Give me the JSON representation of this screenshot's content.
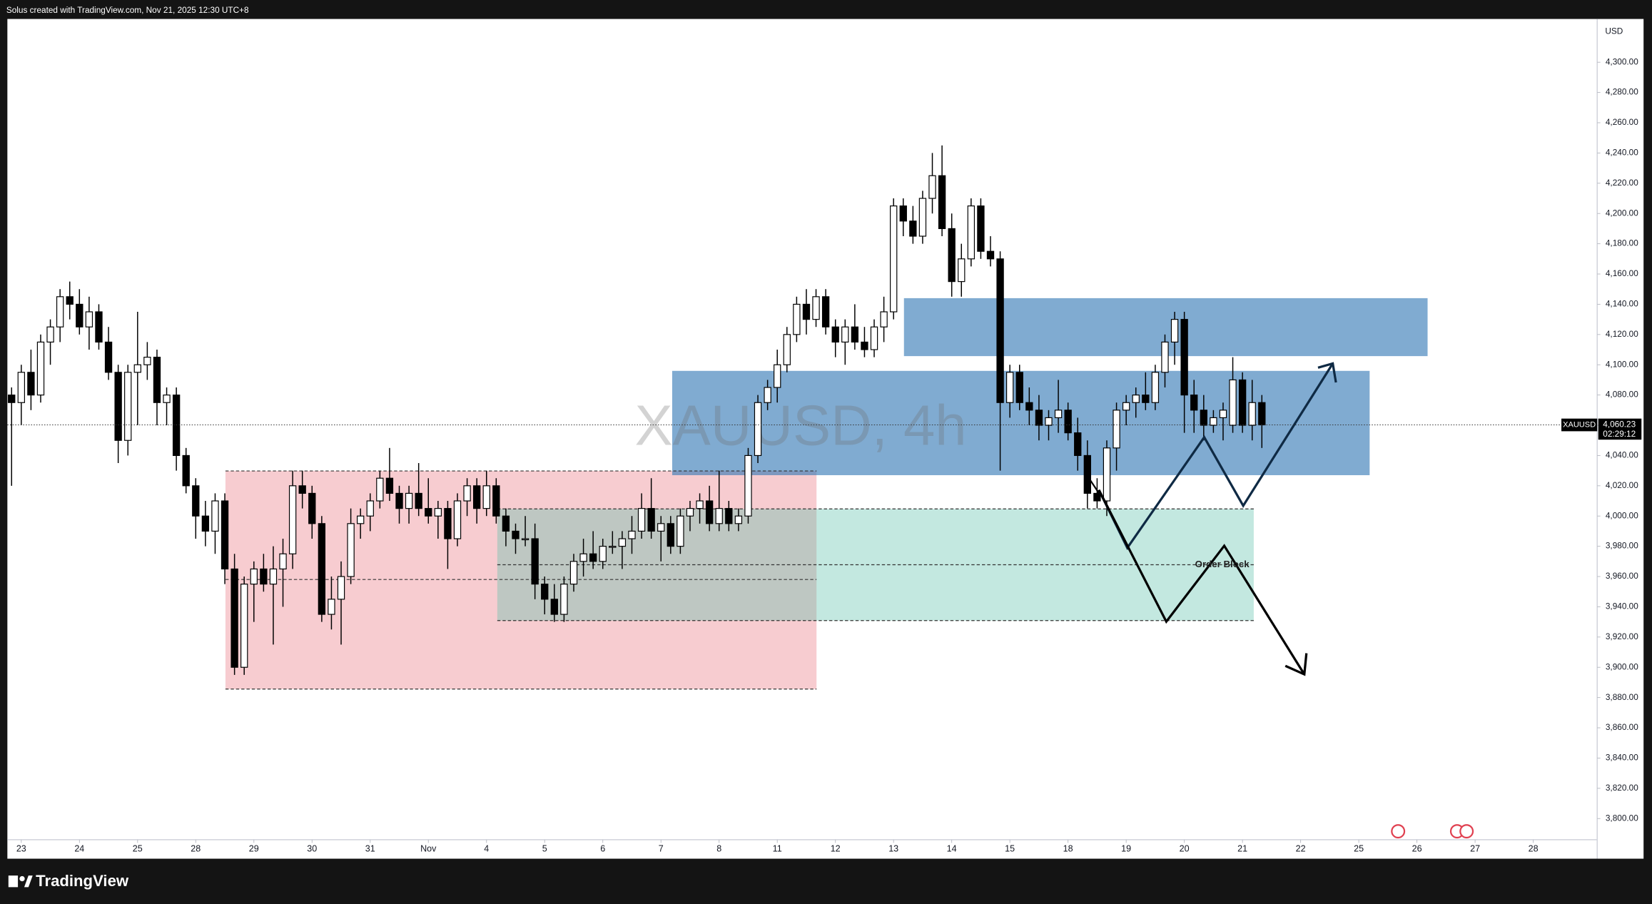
{
  "header": "Solus created with TradingView.com, Nov 21, 2025 12:30 UTC+8",
  "footer": "TradingView",
  "chart_data": {
    "type": "candlestick",
    "title": "XAUUSD, 4h",
    "symbol": "XAUUSD",
    "currency": "USD",
    "annotation": "Order Block",
    "last_price_label": "4,060.23",
    "countdown": "02:29:12",
    "up_color": "#ffffff",
    "down_color": "#000000",
    "border_color": "#000000",
    "open": [
      4080,
      4075,
      4095,
      4080,
      4115,
      4125,
      4145,
      4140,
      4125,
      4135,
      4115,
      4095,
      4050,
      4095,
      4100,
      4105,
      4075,
      4080,
      4040,
      4020,
      4000,
      3990,
      4010,
      3965,
      3900,
      3955,
      3965,
      3955,
      3965,
      3975,
      4020,
      4015,
      3995,
      3935,
      3945,
      3960,
      3995,
      4000,
      4010,
      4025,
      4015,
      4005,
      4015,
      4005,
      4000,
      4005,
      3985,
      4010,
      4020,
      4005,
      4020,
      4000,
      3990,
      3985,
      3985,
      3955,
      3945,
      3935,
      3955,
      3970,
      3975,
      3970,
      3980,
      3980,
      3985,
      3990,
      4005,
      3990,
      3995,
      3980,
      4000,
      4005,
      4010,
      3995,
      4005,
      3995,
      4000,
      4040,
      4075,
      4085,
      4100,
      4120,
      4140,
      4130,
      4145,
      4125,
      4115,
      4125,
      4115,
      4110,
      4125,
      4135,
      4205,
      4195,
      4185,
      4210,
      4225,
      4190,
      4155,
      4170,
      4205,
      4175,
      4170,
      4075,
      4095,
      4075,
      4070,
      4060,
      4065,
      4070,
      4055,
      4040,
      4015,
      4010,
      4045,
      4070,
      4075,
      4080,
      4075,
      4095,
      4115,
      4130,
      4080,
      4070,
      4060,
      4065,
      4060,
      4090,
      4060,
      4075
    ],
    "high": [
      4085,
      4100,
      4110,
      4120,
      4130,
      4150,
      4155,
      4150,
      4145,
      4140,
      4125,
      4100,
      4100,
      4135,
      4115,
      4110,
      4085,
      4085,
      4045,
      4025,
      4010,
      4015,
      4015,
      3975,
      3960,
      3970,
      3975,
      3980,
      3985,
      4030,
      4030,
      4020,
      4000,
      3960,
      3970,
      4005,
      4005,
      4015,
      4030,
      4045,
      4020,
      4020,
      4035,
      4025,
      4010,
      4010,
      4015,
      4025,
      4025,
      4030,
      4025,
      4005,
      3995,
      4000,
      3995,
      3960,
      3955,
      3960,
      3975,
      3985,
      3990,
      3985,
      3990,
      3990,
      4000,
      4015,
      4025,
      4000,
      4000,
      4005,
      4010,
      4015,
      4020,
      4030,
      4010,
      4005,
      4045,
      4080,
      4090,
      4110,
      4125,
      4145,
      4150,
      4150,
      4150,
      4130,
      4130,
      4140,
      4125,
      4130,
      4145,
      4210,
      4210,
      4205,
      4215,
      4240,
      4245,
      4200,
      4180,
      4210,
      4210,
      4185,
      4175,
      4100,
      4100,
      4085,
      4080,
      4070,
      4090,
      4075,
      4065,
      4050,
      4025,
      4050,
      4075,
      4080,
      4085,
      4095,
      4100,
      4120,
      4135,
      4135,
      4090,
      4080,
      4070,
      4075,
      4105,
      4095,
      4090,
      4080
    ],
    "low": [
      4020,
      4060,
      4070,
      4075,
      4100,
      4115,
      4130,
      4120,
      4110,
      4110,
      4090,
      4035,
      4040,
      4060,
      4090,
      4060,
      4060,
      4030,
      4015,
      3985,
      3980,
      3975,
      3955,
      3895,
      3895,
      3930,
      3950,
      3915,
      3940,
      3965,
      4005,
      3985,
      3930,
      3925,
      3915,
      3955,
      3985,
      3990,
      4005,
      4010,
      3995,
      3995,
      4000,
      3995,
      3985,
      3965,
      3980,
      4000,
      3995,
      4000,
      3995,
      3980,
      3975,
      3980,
      3945,
      3935,
      3930,
      3930,
      3950,
      3960,
      3965,
      3965,
      3975,
      3965,
      3975,
      3985,
      3985,
      3970,
      3975,
      3975,
      3990,
      3995,
      3990,
      3990,
      3990,
      3990,
      3995,
      4035,
      4070,
      4075,
      4095,
      4115,
      4120,
      4125,
      4120,
      4105,
      4100,
      4110,
      4105,
      4105,
      4115,
      4130,
      4185,
      4180,
      4180,
      4200,
      4185,
      4145,
      4145,
      4165,
      4170,
      4165,
      4030,
      4065,
      4070,
      4060,
      4050,
      4050,
      4055,
      4050,
      4030,
      4005,
      4005,
      4000,
      4030,
      4060,
      4065,
      4070,
      4070,
      4085,
      4100,
      4055,
      4055,
      4050,
      4055,
      4050,
      4055,
      4055,
      4050,
      4045
    ],
    "close": [
      4075,
      4095,
      4080,
      4115,
      4125,
      4145,
      4140,
      4125,
      4135,
      4115,
      4095,
      4050,
      4095,
      4100,
      4105,
      4075,
      4080,
      4040,
      4020,
      4000,
      3990,
      4010,
      3965,
      3900,
      3955,
      3965,
      3955,
      3965,
      3975,
      4020,
      4015,
      3995,
      3935,
      3945,
      3960,
      3995,
      4000,
      4010,
      4025,
      4015,
      4005,
      4015,
      4005,
      4000,
      4005,
      3985,
      4010,
      4020,
      4005,
      4020,
      4000,
      3990,
      3985,
      3985,
      3955,
      3945,
      3935,
      3955,
      3970,
      3975,
      3970,
      3980,
      3980,
      3985,
      3990,
      4005,
      3990,
      3995,
      3980,
      4000,
      4005,
      4010,
      3995,
      4005,
      3995,
      4000,
      4040,
      4075,
      4085,
      4100,
      4120,
      4140,
      4130,
      4145,
      4125,
      4115,
      4125,
      4115,
      4110,
      4125,
      4135,
      4205,
      4195,
      4185,
      4210,
      4225,
      4190,
      4155,
      4170,
      4205,
      4175,
      4170,
      4075,
      4095,
      4075,
      4070,
      4060,
      4065,
      4070,
      4055,
      4040,
      4015,
      4010,
      4045,
      4070,
      4075,
      4080,
      4075,
      4095,
      4115,
      4130,
      4080,
      4070,
      4060,
      4065,
      4070,
      4090,
      4060,
      4075,
      4060.23
    ],
    "xlim": [
      -0.435,
      163.6
    ],
    "ylim": [
      3786,
      4328.6
    ],
    "xticks": [
      {
        "value": 1,
        "label": "23"
      },
      {
        "value": 7,
        "label": "24"
      },
      {
        "value": 13,
        "label": "25"
      },
      {
        "value": 19,
        "label": "28"
      },
      {
        "value": 25,
        "label": "29"
      },
      {
        "value": 31,
        "label": "30"
      },
      {
        "value": 37,
        "label": "31"
      },
      {
        "value": 43,
        "label": "Nov"
      },
      {
        "value": 49,
        "label": "4"
      },
      {
        "value": 55,
        "label": "5"
      },
      {
        "value": 61,
        "label": "6"
      },
      {
        "value": 67,
        "label": "7"
      },
      {
        "value": 73,
        "label": "8"
      },
      {
        "value": 79,
        "label": "11"
      },
      {
        "value": 85,
        "label": "12"
      },
      {
        "value": 91,
        "label": "13"
      },
      {
        "value": 97,
        "label": "14"
      },
      {
        "value": 103,
        "label": "15"
      },
      {
        "value": 109,
        "label": "18"
      },
      {
        "value": 115,
        "label": "19"
      },
      {
        "value": 121,
        "label": "20"
      },
      {
        "value": 127,
        "label": "21"
      },
      {
        "value": 133,
        "label": "22"
      },
      {
        "value": 139,
        "label": "25"
      },
      {
        "value": 145,
        "label": "26"
      },
      {
        "value": 151,
        "label": "27"
      },
      {
        "value": 157,
        "label": "28"
      }
    ],
    "yticks": [
      {
        "value": 3800,
        "label": "3,800.00"
      },
      {
        "value": 3820,
        "label": "3,820.00"
      },
      {
        "value": 3840,
        "label": "3,840.00"
      },
      {
        "value": 3860,
        "label": "3,860.00"
      },
      {
        "value": 3880,
        "label": "3,880.00"
      },
      {
        "value": 3900,
        "label": "3,900.00"
      },
      {
        "value": 3920,
        "label": "3,920.00"
      },
      {
        "value": 3940,
        "label": "3,940.00"
      },
      {
        "value": 3960,
        "label": "3,960.00"
      },
      {
        "value": 3980,
        "label": "3,980.00"
      },
      {
        "value": 4000,
        "label": "4,000.00"
      },
      {
        "value": 4020,
        "label": "4,020.00"
      },
      {
        "value": 4040,
        "label": "4,040.00"
      },
      {
        "value": 4060,
        "label": "4,060.00"
      },
      {
        "value": 4080,
        "label": "4,080.00"
      },
      {
        "value": 4100,
        "label": "4,100.00"
      },
      {
        "value": 4120,
        "label": "4,120.00"
      },
      {
        "value": 4140,
        "label": "4,140.00"
      },
      {
        "value": 4160,
        "label": "4,160.00"
      },
      {
        "value": 4180,
        "label": "4,180.00"
      },
      {
        "value": 4200,
        "label": "4,200.00"
      },
      {
        "value": 4220,
        "label": "4,220.00"
      },
      {
        "value": 4240,
        "label": "4,240.00"
      },
      {
        "value": 4260,
        "label": "4,260.00"
      },
      {
        "value": 4280,
        "label": "4,280.00"
      },
      {
        "value": 4300,
        "label": "4,300.00"
      }
    ],
    "grid": false
  }
}
